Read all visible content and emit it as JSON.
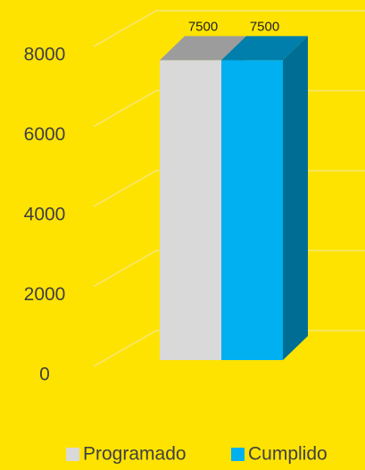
{
  "chart_data": {
    "type": "bar3d",
    "categories": [
      null
    ],
    "series": [
      {
        "name": "Programado",
        "color": "#d9d9d9",
        "values": [
          7500
        ]
      },
      {
        "name": "Cumplido",
        "color": "#00b0f0",
        "values": [
          7500
        ]
      }
    ],
    "ylim": [
      0,
      8000
    ],
    "yticks": [
      0,
      2000,
      4000,
      6000,
      8000
    ],
    "grid": true
  }
}
